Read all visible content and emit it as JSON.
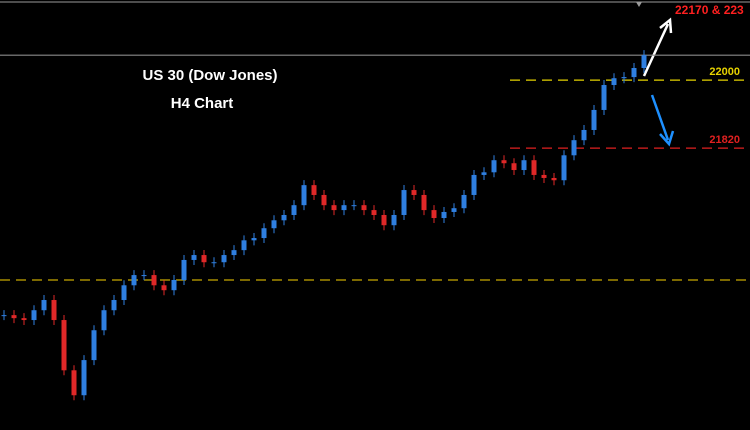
{
  "chart_data": {
    "type": "candlestick",
    "title": "US 30 (Dow Jones)",
    "subtitle": "H4 Chart",
    "annotation": "22170 & 223",
    "up_color": "#2f7fe0",
    "down_color": "#e02828",
    "ylim": [
      21074,
      22212
    ],
    "values": [
      21378,
      21370,
      21365,
      21391,
      21418,
      21365,
      21232,
      21166,
      21259,
      21338,
      21391,
      21418,
      21457,
      21484,
      21484,
      21457,
      21444,
      21471,
      21524,
      21537,
      21518,
      21518,
      21537,
      21550,
      21576,
      21582,
      21608,
      21629,
      21643,
      21669,
      21722,
      21696,
      21669,
      21656,
      21669,
      21669,
      21656,
      21643,
      21616,
      21643,
      21709,
      21696,
      21656,
      21635,
      21651,
      21661,
      21696,
      21749,
      21756,
      21788,
      21780,
      21762,
      21788,
      21749,
      21741,
      21735,
      21801,
      21841,
      21868,
      21921,
      21987,
      22005,
      22008,
      22032,
      22066
    ],
    "levels": [
      {
        "value": 22000,
        "color": "#e6d200",
        "labeled": true
      },
      {
        "value": 21820,
        "color": "#e02020",
        "labeled": true
      },
      {
        "value": 21471,
        "color": "#c8a800",
        "labeled": false
      },
      {
        "value": 22066,
        "color": "#8a8a8a",
        "labeled": false
      }
    ]
  }
}
